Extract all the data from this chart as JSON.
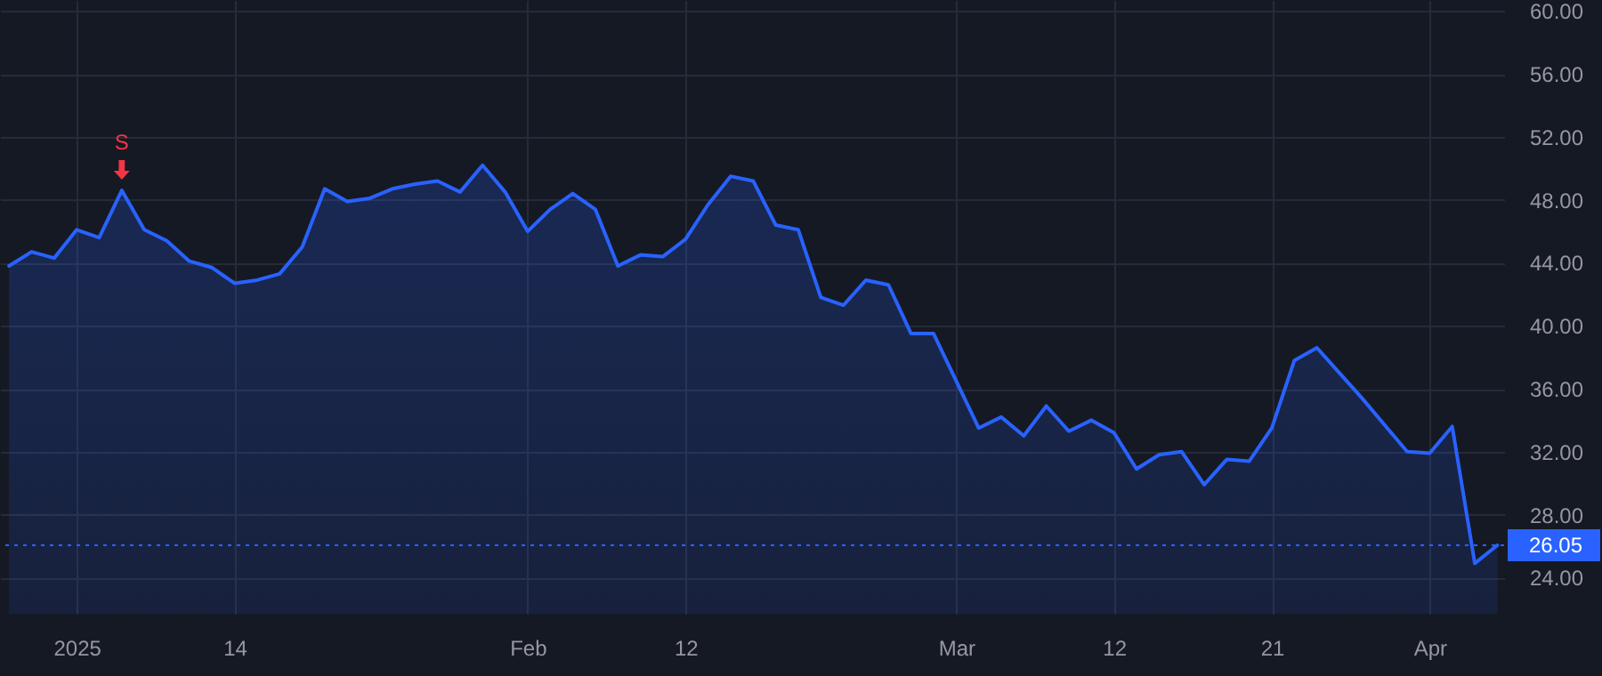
{
  "chart_data": {
    "type": "area",
    "categories": [
      null,
      null,
      null,
      "2025",
      null,
      null,
      null,
      null,
      null,
      null,
      "14",
      null,
      null,
      null,
      null,
      null,
      null,
      null,
      null,
      null,
      null,
      null,
      null,
      "Feb",
      null,
      null,
      null,
      null,
      null,
      null,
      "12",
      null,
      null,
      null,
      null,
      null,
      null,
      null,
      null,
      null,
      null,
      null,
      "Mar",
      null,
      null,
      null,
      null,
      null,
      null,
      "12",
      null,
      null,
      null,
      null,
      null,
      null,
      "21",
      null,
      null,
      null,
      null,
      null,
      null,
      "Apr",
      null,
      null,
      null
    ],
    "series": [
      {
        "color": "#2962ff",
        "values": [
          43.8,
          44.7,
          44.3,
          46.1,
          45.6,
          48.6,
          46.1,
          45.4,
          44.1,
          43.7,
          42.7,
          42.9,
          43.3,
          45.0,
          48.7,
          47.9,
          48.1,
          48.7,
          49.0,
          49.2,
          48.5,
          50.2,
          48.5,
          46.0,
          47.4,
          48.4,
          47.4,
          43.8,
          44.5,
          44.4,
          45.5,
          47.7,
          49.5,
          49.2,
          46.4,
          46.1,
          41.8,
          41.3,
          42.9,
          42.6,
          39.5,
          39.5,
          36.5,
          33.5,
          34.2,
          33.0,
          34.9,
          33.3,
          34.0,
          33.2,
          30.9,
          31.8,
          32.0,
          29.9,
          31.5,
          31.4,
          33.5,
          37.8,
          38.6,
          37.0,
          35.4,
          33.7,
          32.0,
          31.9,
          33.6,
          24.9,
          26.05
        ]
      }
    ],
    "ylim": [
      21.7,
      60.7
    ],
    "yticks": [
      {
        "value": 24,
        "label": "24.00"
      },
      {
        "value": 28,
        "label": "28.00"
      },
      {
        "value": 32,
        "label": "32.00"
      },
      {
        "value": 36,
        "label": "36.00"
      },
      {
        "value": 40,
        "label": "40.00"
      },
      {
        "value": 44,
        "label": "44.00"
      },
      {
        "value": 48,
        "label": "48.00"
      },
      {
        "value": 52,
        "label": "52.00"
      },
      {
        "value": 56,
        "label": "56.00"
      },
      {
        "value": 60,
        "label": "60.00"
      }
    ],
    "grid": true,
    "ref_lines": [
      {
        "axis": "y",
        "value": 26.05,
        "label": "26.05",
        "color": "#2962ff",
        "line_style": "dotted"
      }
    ],
    "annotations": [
      {
        "text": "S",
        "y": 48.6
      }
    ]
  }
}
